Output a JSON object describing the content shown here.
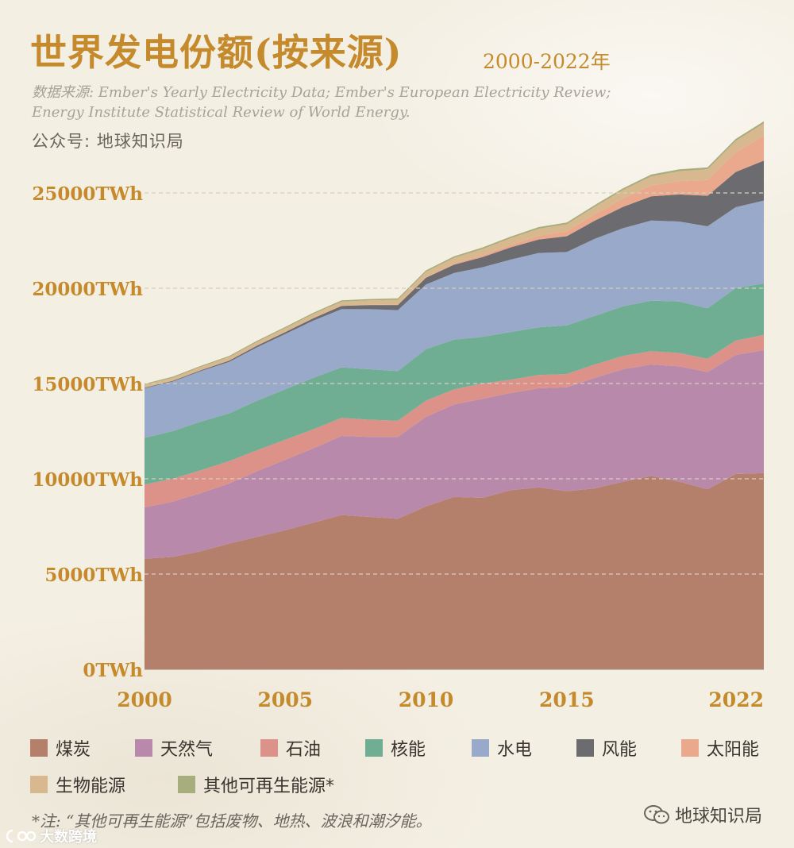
{
  "header": {
    "title": "世界发电份额(按来源)",
    "range": "2000-2022年",
    "source_line1": "数据来源: Ember's Yearly Electricity Data; Ember's European Electricity Review;",
    "source_line2": "Energy Institute Statistical Review of World Energy.",
    "account": "公众号: 地球知识局"
  },
  "colors": {
    "煤炭": "#b5806b",
    "天然气": "#b889aa",
    "石油": "#dc9288",
    "核能": "#6fae92",
    "水电": "#99a9c9",
    "风能": "#6c6c70",
    "太阳能": "#eaa98c",
    "生物能源": "#d8b88e",
    "其他可再生能源": "#a7ad7c"
  },
  "chart_data": {
    "type": "area",
    "stacked": true,
    "x": [
      2000,
      2001,
      2002,
      2003,
      2004,
      2005,
      2006,
      2007,
      2008,
      2009,
      2010,
      2011,
      2012,
      2013,
      2014,
      2015,
      2016,
      2017,
      2018,
      2019,
      2020,
      2021,
      2022
    ],
    "x_ticks": [
      "2000",
      "2005",
      "2010",
      "2015",
      "2022"
    ],
    "ylim": [
      0,
      28000
    ],
    "y_ticks": [
      "0TWh",
      "5000TWh",
      "10000TWh",
      "15000TWh",
      "20000TWh",
      "25000TWh"
    ],
    "grid": true,
    "series": [
      {
        "name": "煤炭",
        "values": [
          5800,
          5900,
          6200,
          6600,
          6950,
          7300,
          7700,
          8100,
          8000,
          7900,
          8550,
          9050,
          9000,
          9400,
          9550,
          9350,
          9500,
          9850,
          10150,
          9850,
          9450,
          10250,
          10300
        ]
      },
      {
        "name": "天然气",
        "values": [
          2700,
          2900,
          3050,
          3150,
          3450,
          3700,
          3900,
          4150,
          4200,
          4300,
          4700,
          4850,
          5200,
          5100,
          5200,
          5450,
          5800,
          5900,
          5850,
          6050,
          6150,
          6250,
          6450
        ]
      },
      {
        "name": "石油",
        "values": [
          1200,
          1200,
          1200,
          1180,
          1100,
          1050,
          1000,
          950,
          900,
          850,
          850,
          800,
          800,
          700,
          700,
          700,
          700,
          700,
          700,
          700,
          700,
          750,
          800
        ]
      },
      {
        "name": "核能",
        "values": [
          2450,
          2500,
          2550,
          2500,
          2600,
          2650,
          2700,
          2650,
          2650,
          2600,
          2700,
          2600,
          2450,
          2500,
          2500,
          2550,
          2550,
          2600,
          2650,
          2700,
          2650,
          2750,
          2700
        ]
      },
      {
        "name": "水电",
        "values": [
          2600,
          2600,
          2650,
          2700,
          2800,
          2900,
          3000,
          3050,
          3150,
          3200,
          3400,
          3500,
          3650,
          3800,
          3900,
          3850,
          4050,
          4100,
          4200,
          4200,
          4300,
          4250,
          4350
        ]
      },
      {
        "name": "风能",
        "values": [
          30,
          40,
          50,
          70,
          90,
          100,
          130,
          170,
          220,
          270,
          350,
          440,
          530,
          640,
          710,
          830,
          950,
          1120,
          1270,
          1420,
          1600,
          1850,
          2100
        ]
      },
      {
        "name": "太阳能",
        "values": [
          2,
          2,
          3,
          3,
          4,
          5,
          6,
          7,
          12,
          20,
          30,
          60,
          100,
          140,
          200,
          250,
          330,
          450,
          570,
          700,
          830,
          1030,
          1300
        ]
      },
      {
        "name": "生物能源",
        "values": [
          150,
          160,
          170,
          180,
          190,
          200,
          210,
          220,
          230,
          250,
          280,
          300,
          320,
          340,
          360,
          380,
          400,
          430,
          480,
          520,
          560,
          600,
          650
        ]
      },
      {
        "name": "其他可再生能源",
        "values": [
          50,
          55,
          58,
          60,
          62,
          65,
          67,
          70,
          72,
          75,
          78,
          80,
          82,
          85,
          88,
          90,
          92,
          94,
          96,
          98,
          100,
          105,
          110
        ]
      }
    ]
  },
  "legend": {
    "items": [
      "煤炭",
      "天然气",
      "石油",
      "核能",
      "水电",
      "风能",
      "太阳能",
      "生物能源",
      "其他可再生能源*"
    ]
  },
  "footer": {
    "note": "*注: “其他可再生能源”包括废物、地热、波浪和潮汐能。",
    "wechat": "地球知识局",
    "corner": "大数跨境"
  }
}
